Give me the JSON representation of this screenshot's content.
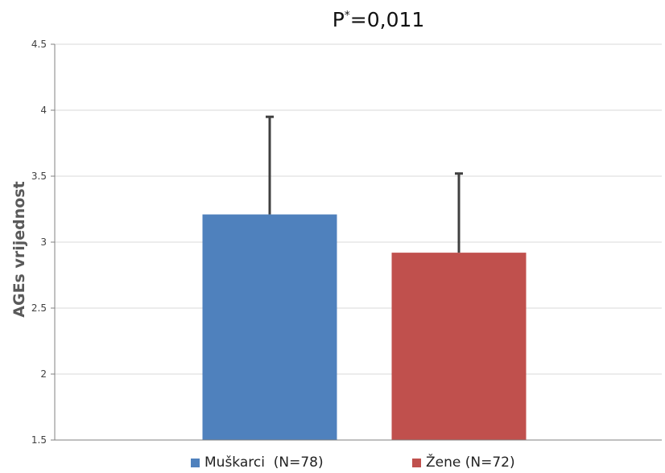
{
  "chart_data": {
    "type": "bar",
    "title_main": "P",
    "title_sup": "*",
    "title_rest": "=0,011",
    "ylabel": "AGEs vrijednost",
    "xlabel": "",
    "ylim": [
      1.5,
      4.5
    ],
    "yticks": [
      "1.5",
      "2",
      "2.5",
      "3",
      "3.5",
      "4",
      "4.5"
    ],
    "ytick_values": [
      1.5,
      2,
      2.5,
      3,
      3.5,
      4,
      4.5
    ],
    "grid": true,
    "legend_position": "bottom",
    "series": [
      {
        "name": "Muškarci  (N=78)",
        "value": 3.21,
        "error_upper": 3.95,
        "color": "#4f81bd"
      },
      {
        "name": "Žene (N=72)",
        "value": 2.92,
        "error_upper": 3.52,
        "color": "#c0504d"
      }
    ],
    "error_bar_color": "#404040",
    "grid_color": "#d9d9d9",
    "axis_color": "#808080",
    "tick_text_color": "#404040",
    "ylabel_color": "#595959"
  }
}
